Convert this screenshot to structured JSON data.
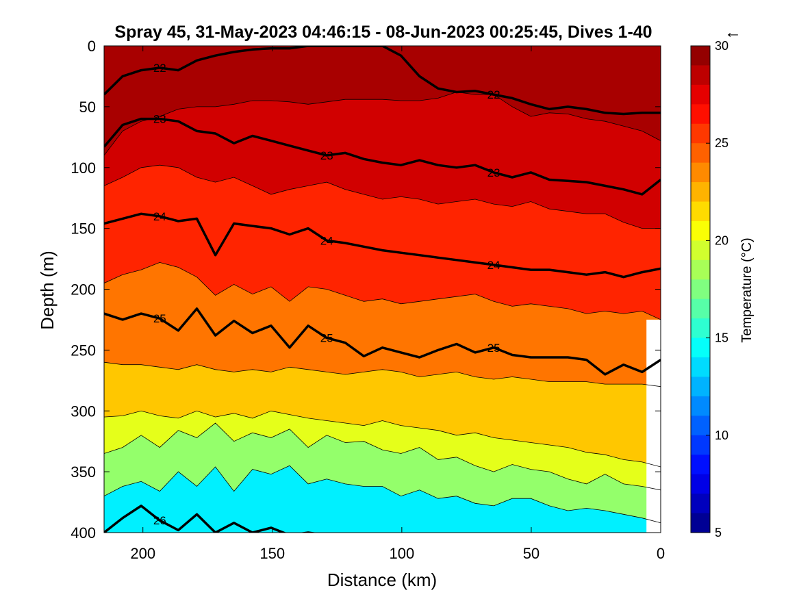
{
  "chart_data": {
    "type": "filled-contour",
    "title": "Spray 45, 31-May-2023 04:46:15 - 08-Jun-2023 00:25:45, Dives 1-40",
    "title_arrow": "←",
    "xlabel": "Distance (km)",
    "ylabel": "Depth (m)",
    "x_reversed": true,
    "y_reversed": true,
    "xlim": [
      0,
      215
    ],
    "ylim": [
      0,
      400
    ],
    "xticks": [
      "200",
      "150",
      "100",
      "50",
      "0"
    ],
    "yticks": [
      "0",
      "50",
      "100",
      "150",
      "200",
      "250",
      "300",
      "350",
      "400"
    ],
    "colorbar": {
      "label": "Temperature (°C)",
      "range": [
        5,
        30
      ],
      "step": 1,
      "ticks": [
        "5",
        "10",
        "15",
        "20",
        "25",
        "30"
      ],
      "colormap": "jet"
    },
    "isotherm_lines": [
      {
        "value": 28,
        "depths": [
          90,
          70,
          62,
          58,
          52,
          50,
          50,
          48,
          45,
          45,
          46,
          48,
          46,
          44,
          44,
          44,
          45,
          45,
          43,
          38,
          40,
          40,
          50,
          58,
          55,
          56,
          60,
          62,
          66,
          70,
          78
        ]
      },
      {
        "value": 26,
        "depths": [
          115,
          108,
          100,
          98,
          100,
          108,
          112,
          108,
          115,
          122,
          118,
          115,
          112,
          118,
          122,
          126,
          124,
          126,
          130,
          128,
          126,
          130,
          132,
          128,
          134,
          136,
          138,
          138,
          145,
          150,
          150
        ]
      },
      {
        "value": 24,
        "depths": [
          195,
          188,
          184,
          178,
          182,
          190,
          205,
          196,
          204,
          198,
          210,
          198,
          200,
          205,
          210,
          208,
          212,
          210,
          208,
          206,
          204,
          210,
          214,
          212,
          214,
          216,
          220,
          218,
          220,
          218,
          225
        ]
      },
      {
        "value": 22,
        "depths": [
          260,
          262,
          262,
          264,
          266,
          262,
          266,
          268,
          266,
          268,
          264,
          266,
          268,
          270,
          268,
          266,
          268,
          272,
          270,
          268,
          272,
          274,
          272,
          274,
          276,
          276,
          276,
          278,
          278,
          278,
          280
        ]
      },
      {
        "value": 20,
        "depths": [
          305,
          304,
          300,
          304,
          306,
          300,
          305,
          302,
          306,
          300,
          303,
          306,
          308,
          310,
          312,
          308,
          312,
          314,
          316,
          320,
          318,
          322,
          324,
          326,
          328,
          330,
          334,
          336,
          340,
          342,
          346
        ]
      },
      {
        "value": 18,
        "depths": [
          335,
          330,
          320,
          330,
          316,
          322,
          310,
          325,
          318,
          322,
          315,
          330,
          320,
          326,
          325,
          332,
          335,
          330,
          340,
          338,
          345,
          350,
          344,
          348,
          350,
          356,
          360,
          352,
          360,
          362,
          365
        ]
      },
      {
        "value": 16,
        "depths": [
          370,
          362,
          358,
          366,
          350,
          362,
          346,
          366,
          348,
          352,
          345,
          360,
          356,
          360,
          362,
          362,
          370,
          365,
          372,
          370,
          376,
          378,
          372,
          372,
          378,
          382,
          380,
          382,
          385,
          388,
          392
        ]
      }
    ],
    "labeled_contours": [
      {
        "label": "22",
        "depths": [
          40,
          25,
          20,
          18,
          20,
          12,
          8,
          5,
          3,
          2,
          2,
          0,
          0,
          0,
          0,
          0,
          8,
          25,
          35,
          38,
          37,
          40,
          43,
          48,
          52,
          50,
          52,
          55,
          56,
          55,
          55
        ]
      },
      {
        "label": "23",
        "depths": [
          83,
          65,
          60,
          60,
          62,
          70,
          72,
          80,
          74,
          78,
          82,
          86,
          90,
          88,
          93,
          96,
          98,
          94,
          98,
          100,
          98,
          104,
          108,
          104,
          110,
          111,
          112,
          115,
          118,
          122,
          110
        ]
      },
      {
        "label": "24",
        "depths": [
          146,
          142,
          138,
          140,
          144,
          142,
          172,
          146,
          148,
          150,
          155,
          150,
          160,
          162,
          165,
          168,
          170,
          172,
          174,
          176,
          178,
          180,
          182,
          184,
          184,
          186,
          188,
          186,
          190,
          186,
          183
        ]
      },
      {
        "label": "25",
        "depths": [
          220,
          225,
          220,
          224,
          234,
          216,
          238,
          226,
          236,
          230,
          248,
          230,
          240,
          244,
          255,
          248,
          252,
          256,
          250,
          245,
          252,
          248,
          254,
          256,
          256,
          256,
          258,
          270,
          262,
          268,
          258
        ]
      },
      {
        "label": "26",
        "depths": [
          400,
          388,
          378,
          390,
          398,
          385,
          400,
          392,
          400,
          396,
          402,
          400,
          402,
          404,
          404,
          405,
          406,
          404,
          406,
          405,
          406,
          408,
          408,
          408,
          408,
          408,
          408,
          408,
          408,
          408,
          408
        ]
      }
    ]
  }
}
